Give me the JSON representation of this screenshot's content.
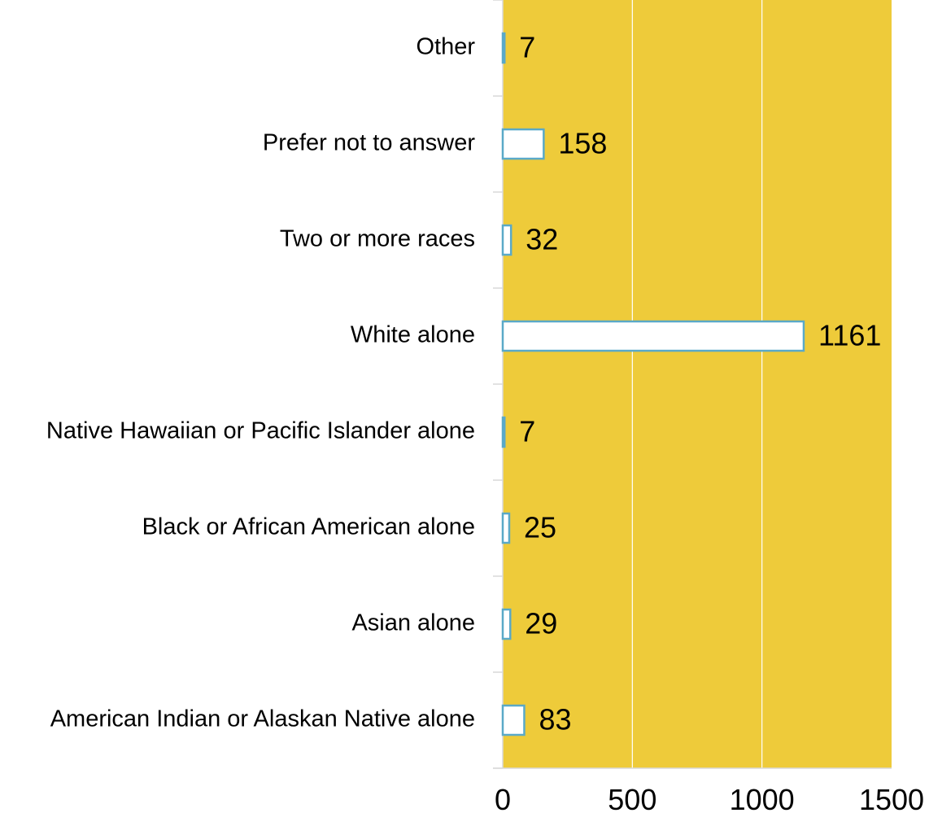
{
  "chart_data": {
    "type": "bar",
    "orientation": "horizontal",
    "categories": [
      "American Indian or Alaskan Native alone",
      "Asian alone",
      "Black or African American alone",
      "Native Hawaiian or Pacific Islander alone",
      "White alone",
      "Two or more races",
      "Prefer not to answer",
      "Other"
    ],
    "values": [
      83,
      29,
      25,
      7,
      1161,
      32,
      158,
      7
    ],
    "xlim": [
      0,
      1500
    ],
    "xticks": [
      "0",
      "500",
      "1000",
      "1500"
    ],
    "title": "",
    "xlabel": "",
    "ylabel": "",
    "grid": true,
    "legend": "none",
    "colors": {
      "plot_background": "#eecb3a",
      "bar_fill": "#ffffff",
      "bar_stroke": "#5aa9c8",
      "gridline": "#ffffff",
      "axis": "#d9d9d9"
    }
  }
}
